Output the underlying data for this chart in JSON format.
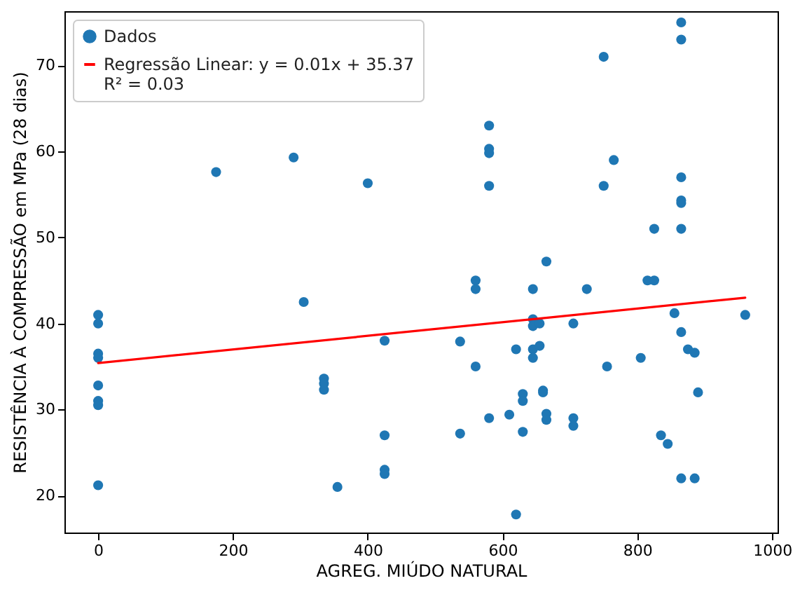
{
  "chart_data": {
    "type": "scatter",
    "xlabel": "AGREG. MIÚDO NATURAL",
    "ylabel": "RESISTÊNCIA À COMPRESSÃO em MPa (28 dias)",
    "xlim": [
      -50,
      1008
    ],
    "ylim": [
      15.7,
      76.3
    ],
    "xticks": [
      0,
      200,
      400,
      600,
      800,
      1000
    ],
    "yticks": [
      20,
      30,
      40,
      50,
      60,
      70
    ],
    "grid": false,
    "legend": "top left",
    "series": [
      {
        "name": "Dados",
        "marker": "circle",
        "color": "#1f77b4",
        "x": [
          0,
          0,
          0,
          0,
          0,
          0,
          0,
          0,
          175,
          290,
          305,
          335,
          335,
          335,
          355,
          400,
          425,
          425,
          425,
          425,
          537,
          537,
          560,
          560,
          560,
          580,
          580,
          580,
          580,
          580,
          610,
          620,
          620,
          630,
          630,
          630,
          645,
          645,
          645,
          645,
          645,
          655,
          655,
          660,
          660,
          665,
          665,
          665,
          705,
          705,
          705,
          725,
          750,
          750,
          755,
          765,
          805,
          815,
          825,
          825,
          835,
          845,
          855,
          865,
          865,
          865,
          865,
          865,
          865,
          865,
          865,
          875,
          885,
          885,
          890,
          960
        ],
        "values": [
          41,
          40,
          36.5,
          36,
          32.8,
          31,
          30.5,
          21.2,
          57.6,
          59.3,
          42.5,
          33.6,
          33,
          32.3,
          21,
          56.3,
          38,
          27,
          23,
          22.5,
          27.2,
          37.9,
          45,
          44,
          35,
          63,
          60.3,
          59.8,
          56,
          29,
          29.4,
          17.8,
          37,
          31.8,
          31,
          27.4,
          40.5,
          39.7,
          37,
          36,
          44,
          40,
          37.4,
          32.2,
          32,
          47.2,
          29.5,
          28.8,
          40,
          29,
          28.1,
          44,
          71,
          56,
          35,
          59,
          36,
          45,
          45,
          51,
          27,
          26,
          41.2,
          75,
          73,
          57,
          54.3,
          54,
          51,
          39,
          22,
          37,
          36.6,
          22,
          32,
          41
        ]
      },
      {
        "name": "Regressão Linear: y = 0.01x + 35.37\nR² = 0.03",
        "type": "line",
        "color": "#ff0000",
        "line_style": "solid",
        "x": [
          0,
          960
        ],
        "values": [
          35.4,
          43.0
        ]
      }
    ]
  }
}
